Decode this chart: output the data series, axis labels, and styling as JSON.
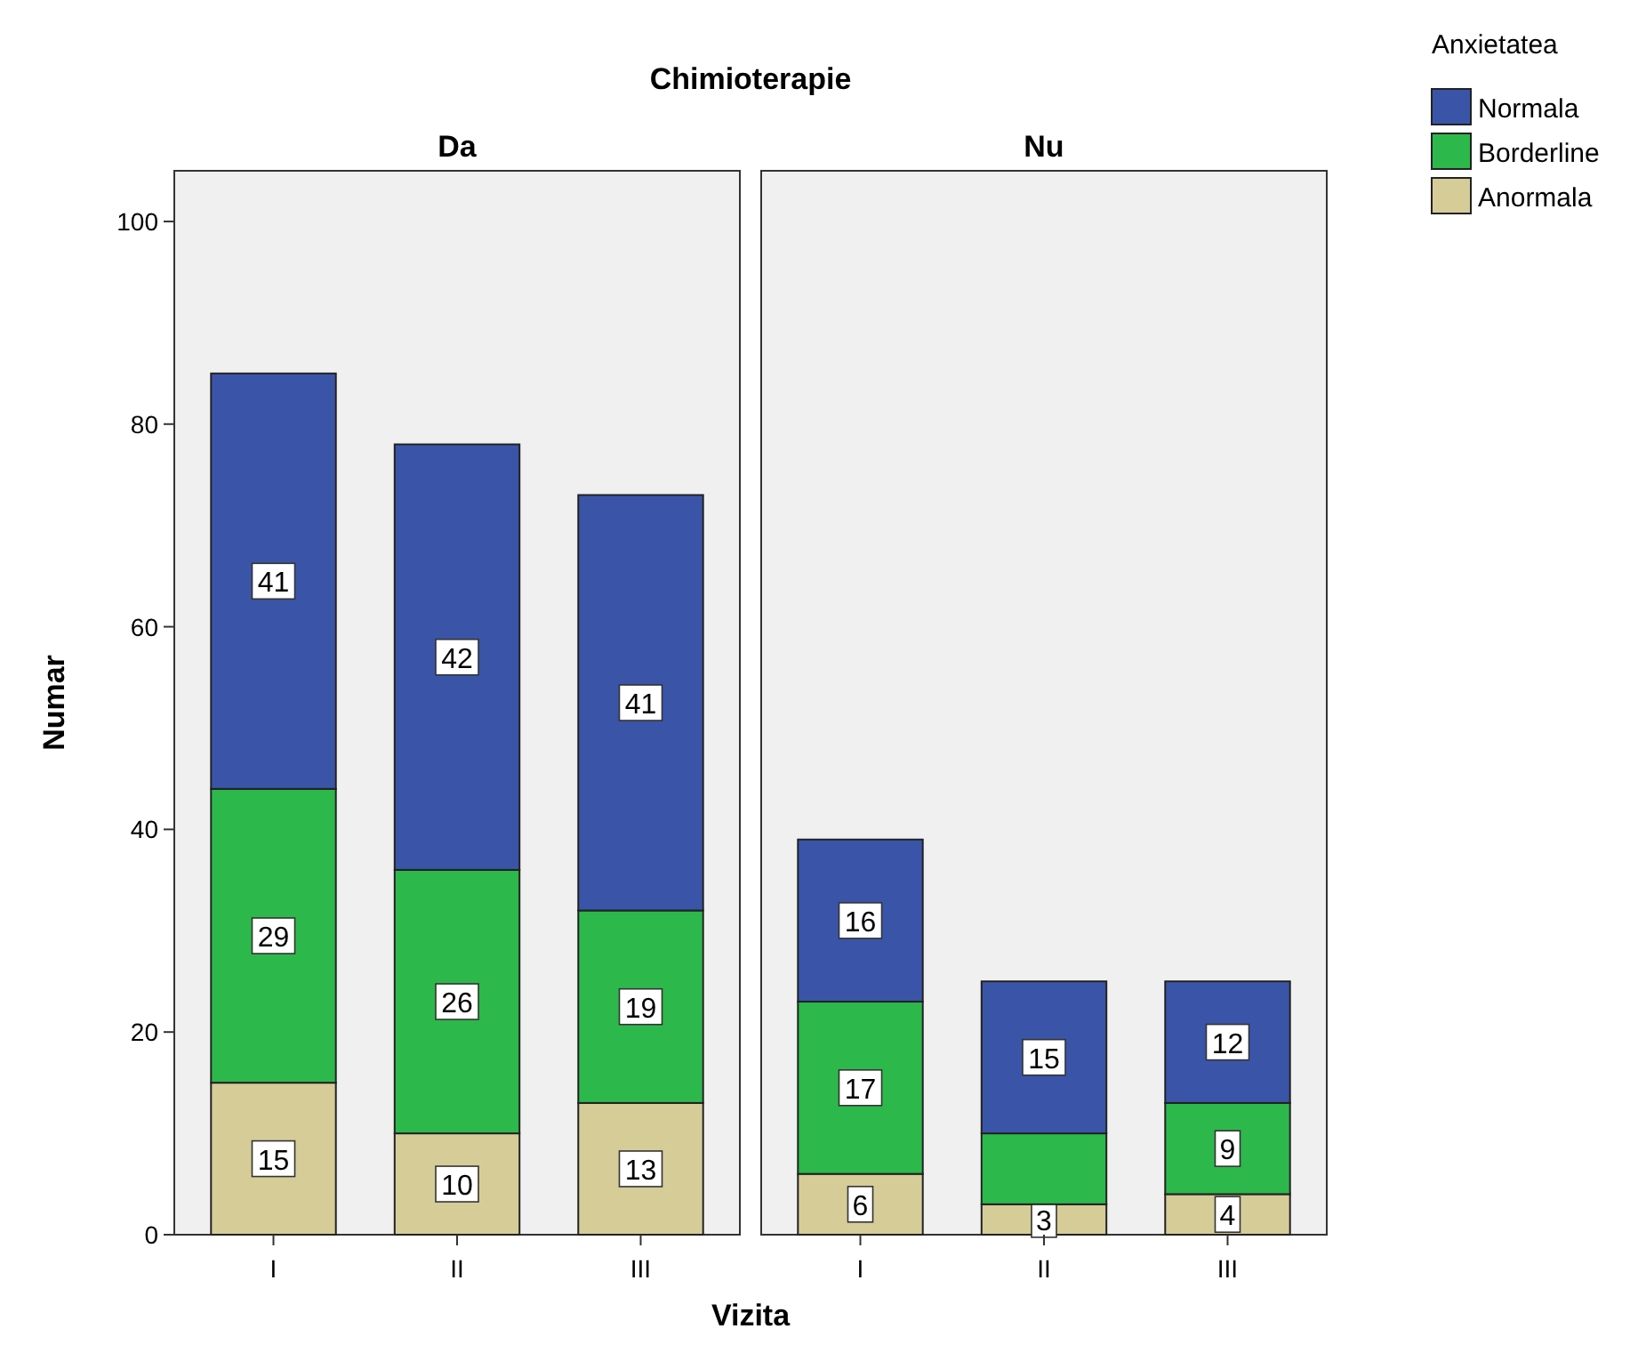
{
  "chart_data": [
    {
      "type": "bar",
      "title": "Chimioterapie",
      "subtitle": "Da",
      "xlabel": "Vizita",
      "ylabel": "Numar",
      "categories": [
        "I",
        "II",
        "III"
      ],
      "stacked": true,
      "ylim": [
        0,
        105
      ],
      "yticks": [
        0,
        20,
        40,
        60,
        80,
        100
      ],
      "data_labels": true,
      "legend": false,
      "series": [
        {
          "color": "#d5cc98",
          "values": [
            15,
            10,
            13
          ]
        },
        {
          "color": "#2db84b",
          "values": [
            29,
            26,
            19
          ]
        },
        {
          "color": "#3a55a8",
          "values": [
            41,
            42,
            41
          ]
        }
      ]
    },
    {
      "type": "bar",
      "subtitle": "Nu",
      "categories": [
        "I",
        "II",
        "III"
      ],
      "stacked": true,
      "ylim": [
        0,
        105
      ],
      "tick_labels": "x",
      "legend": "right",
      "legend_title": "Anxietatea",
      "series": [
        {
          "name": "Anormala",
          "color": "#d5cc98",
          "values": [
            6,
            3,
            4
          ],
          "value_labels": [
            "6",
            "3",
            "4"
          ]
        },
        {
          "name": "Borderline",
          "color": "#2db84b",
          "values": [
            17,
            7,
            9
          ],
          "value_labels": [
            "17",
            null,
            "9"
          ]
        },
        {
          "name": "Normala",
          "color": "#3a55a8",
          "values": [
            16,
            15,
            12
          ],
          "value_labels": [
            "16",
            "15",
            "12"
          ]
        }
      ]
    }
  ]
}
